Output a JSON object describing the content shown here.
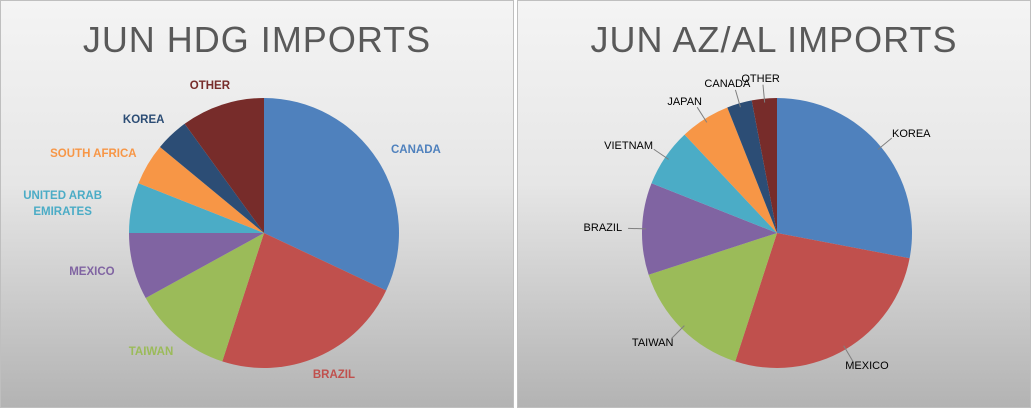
{
  "chart_data": [
    {
      "type": "pie",
      "title": "JUN HDG IMPORTS",
      "leader_lines": false,
      "categories": [
        "CANADA",
        "BRAZIL",
        "TAIWAN",
        "MEXICO",
        "UNITED ARAB EMIRATES",
        "SOUTH AFRICA",
        "KOREA",
        "OTHER"
      ],
      "values": [
        32,
        23,
        12,
        8,
        6,
        5,
        4,
        10
      ],
      "colors": [
        "#4f81bd",
        "#c0504d",
        "#9bbb59",
        "#8064a2",
        "#4bacc6",
        "#f79646",
        "#2c4d75",
        "#772c2a"
      ]
    },
    {
      "type": "pie",
      "title": "JUN AZ/AL IMPORTS",
      "leader_lines": true,
      "categories": [
        "KOREA",
        "MEXICO",
        "TAIWAN",
        "BRAZIL",
        "VIETNAM",
        "JAPAN",
        "CANADA",
        "OTHER"
      ],
      "values": [
        28,
        27,
        15,
        11,
        7,
        6,
        3,
        3
      ],
      "colors": [
        "#4f81bd",
        "#c0504d",
        "#9bbb59",
        "#8064a2",
        "#4bacc6",
        "#f79646",
        "#2c4d75",
        "#772c2a"
      ]
    }
  ]
}
